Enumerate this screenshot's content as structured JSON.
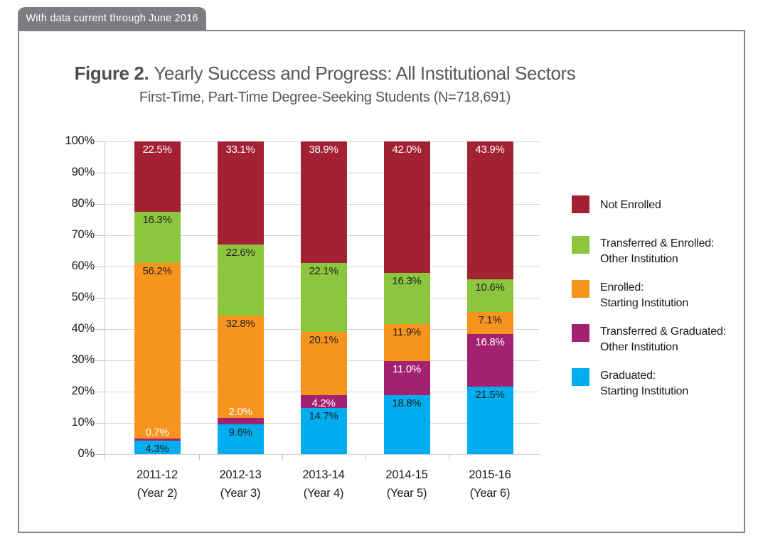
{
  "banner": {
    "label": "With data current through June 2016"
  },
  "figure": {
    "title_prefix": "Figure 2.",
    "title_rest": "Yearly Success and Progress: All Institutional Sectors",
    "subtitle": "First-Time, Part-Time Degree-Seeking Students (N=718,691)"
  },
  "chart_data": {
    "type": "bar",
    "stacked": true,
    "title": "Figure 2. Yearly Success and Progress: All Institutional Sectors",
    "subtitle": "First-Time, Part-Time Degree-Seeking Students (N=718,691)",
    "xlabel": "",
    "ylabel": "",
    "ylim": [
      0,
      100
    ],
    "grid": true,
    "legend_position": "right",
    "y_ticks": [
      "0%",
      "10%",
      "20%",
      "30%",
      "40%",
      "50%",
      "60%",
      "70%",
      "80%",
      "90%",
      "100%"
    ],
    "categories": [
      [
        "2011-12",
        "(Year 2)"
      ],
      [
        "2012-13",
        "(Year 3)"
      ],
      [
        "2013-14",
        "(Year 4)"
      ],
      [
        "2014-15",
        "(Year 5)"
      ],
      [
        "2015-16",
        "(Year 6)"
      ]
    ],
    "series": [
      {
        "name": "Graduated: Starting Institution",
        "color": "#00aeef",
        "label_color": "#231f20",
        "values": [
          4.3,
          9.6,
          14.7,
          18.8,
          21.5
        ]
      },
      {
        "name": "Transferred & Graduated: Other Institution",
        "color": "#a32170",
        "label_color": "#ffffff",
        "values": [
          0.7,
          2.0,
          4.2,
          11.0,
          16.8
        ]
      },
      {
        "name": "Enrolled: Starting Institution",
        "color": "#f7941e",
        "label_color": "#231f20",
        "values": [
          56.2,
          32.8,
          20.1,
          11.9,
          7.1
        ]
      },
      {
        "name": "Transferred & Enrolled: Other Institution",
        "color": "#8cc63f",
        "label_color": "#231f20",
        "values": [
          16.3,
          22.6,
          22.1,
          16.3,
          10.6
        ]
      },
      {
        "name": "Not Enrolled",
        "color": "#a32132",
        "label_color": "#ffffff",
        "values": [
          22.5,
          33.1,
          38.9,
          42.0,
          43.9
        ]
      }
    ]
  },
  "legend": {
    "items": [
      {
        "color": "#a32132",
        "lines": [
          "Not Enrolled"
        ]
      },
      {
        "color": "#8cc63f",
        "lines": [
          "Transferred & Enrolled:",
          "Other Institution"
        ]
      },
      {
        "color": "#f7941e",
        "lines": [
          "Enrolled:",
          "Starting Institution"
        ]
      },
      {
        "color": "#a32170",
        "lines": [
          "Transferred & Graduated:",
          "Other Institution"
        ]
      },
      {
        "color": "#00aeef",
        "lines": [
          "Graduated:",
          "Starting Institution"
        ]
      }
    ]
  }
}
